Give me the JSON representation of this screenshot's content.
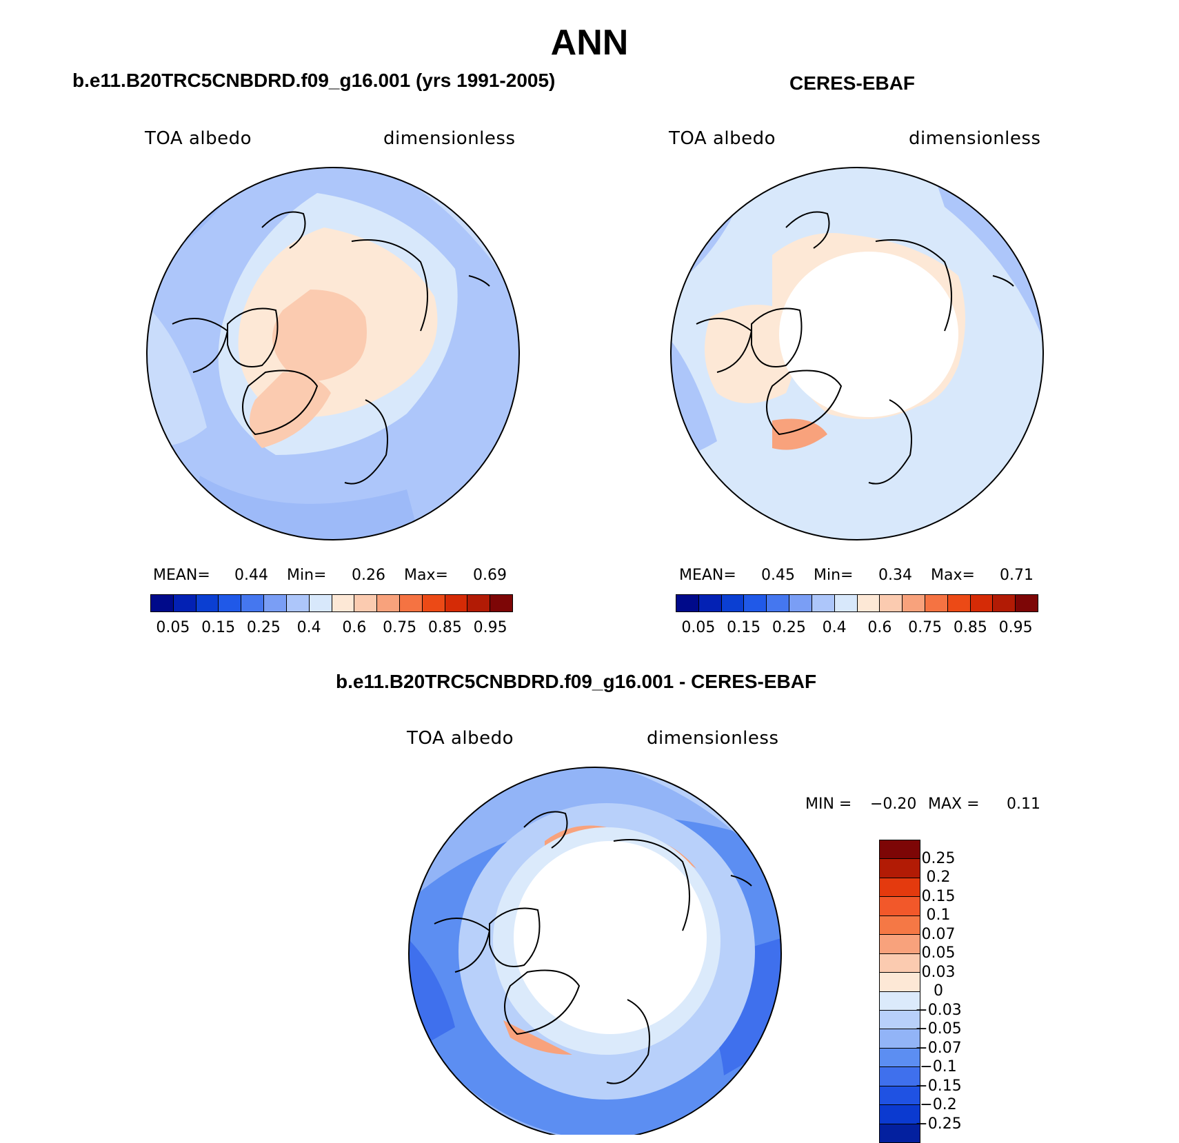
{
  "title": "ANN",
  "panels": [
    {
      "id": "model",
      "case_title": "b.e11.B20TRC5CNBDRD.f09_g16.001 (yrs 1991-2005)",
      "variable": "TOA albedo",
      "units": "dimensionless",
      "mean_label": "MEAN=",
      "mean_value": "0.44",
      "min_label": "Min=",
      "min_value": "0.26",
      "max_label": "Max=",
      "max_value": "0.69"
    },
    {
      "id": "obs",
      "case_title": "CERES-EBAF",
      "variable": "TOA albedo",
      "units": "dimensionless",
      "mean_label": "MEAN=",
      "mean_value": "0.45",
      "min_label": "Min=",
      "min_value": "0.34",
      "max_label": "Max=",
      "max_value": "0.71"
    }
  ],
  "colorbar": {
    "colors": [
      "#000a8a",
      "#0321b4",
      "#0b3fd2",
      "#2059e8",
      "#4577ef",
      "#7a9ef5",
      "#adc6fa",
      "#d8e8fb",
      "#fde8d6",
      "#fbcbb0",
      "#f8a27c",
      "#f57342",
      "#ec4a16",
      "#d52b06",
      "#b21b05",
      "#7d0606"
    ],
    "ticks": [
      "0.05",
      "0.15",
      "0.25",
      "0.4",
      "0.6",
      "0.75",
      "0.85",
      "0.95"
    ]
  },
  "difference": {
    "title": "b.e11.B20TRC5CNBDRD.f09_g16.001 - CERES-EBAF",
    "variable": "TOA albedo",
    "units": "dimensionless",
    "min_label": "MIN =",
    "min_value": "−0.20",
    "max_label": "MAX =",
    "max_value": "0.11",
    "colorbar": {
      "colors": [
        "#7d0606",
        "#b21b05",
        "#e43a0e",
        "#f2582a",
        "#f57845",
        "#f8a27c",
        "#fbcbb0",
        "#fde8d6",
        "#dbeafb",
        "#b8d0fa",
        "#92b4f7",
        "#5c8ef2",
        "#3f70ed",
        "#1f52e3",
        "#0b3ad0",
        "#03209f"
      ],
      "ticks": [
        "0.25",
        "0.2",
        "0.15",
        "0.1",
        "0.07",
        "0.05",
        "0.03",
        "0",
        "−0.03",
        "−0.05",
        "−0.07",
        "−0.1",
        "−0.15",
        "−0.2",
        "−0.25"
      ]
    }
  }
}
